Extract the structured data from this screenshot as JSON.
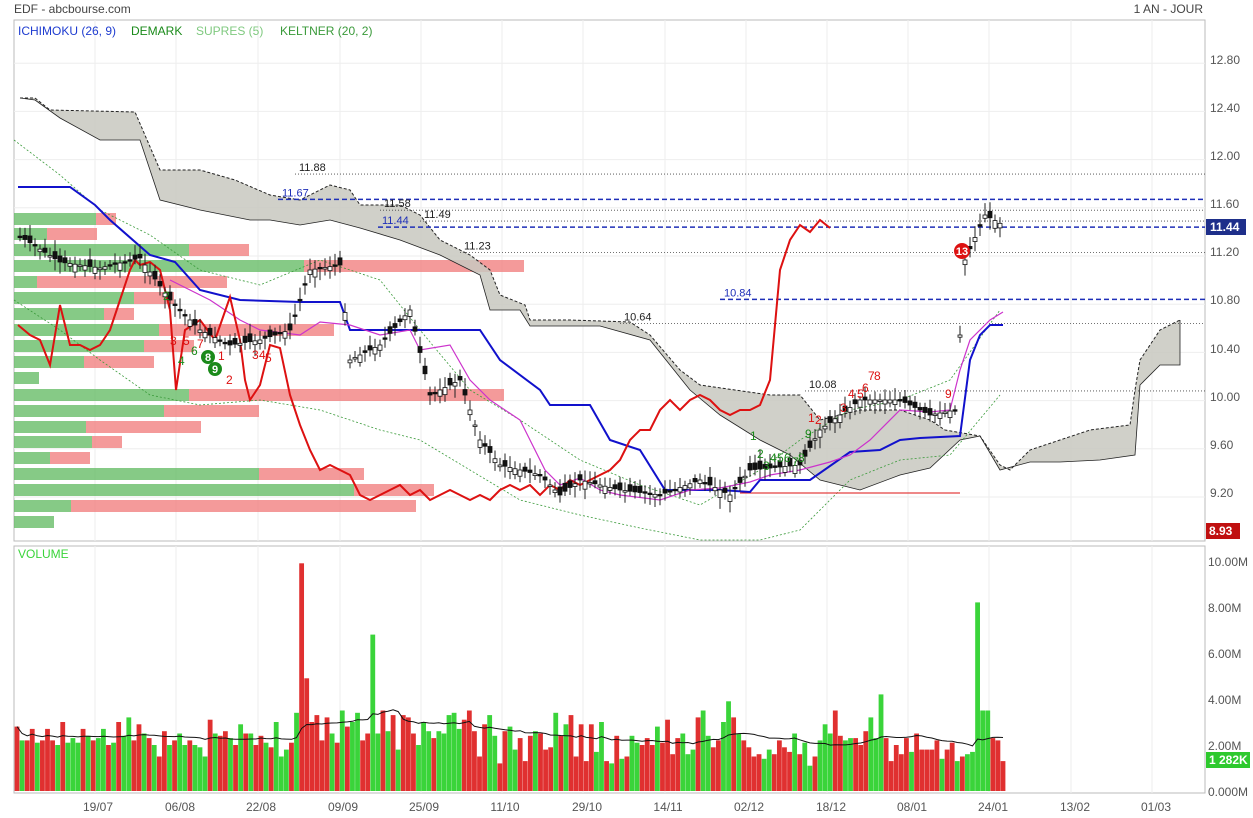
{
  "header": {
    "left": "EDF - abcbourse.com",
    "right": "1 AN - JOUR"
  },
  "indicators": [
    {
      "label": "ICHIMOKU (26, 9)",
      "color": "#1e3cd0"
    },
    {
      "label": "DEMARK",
      "color": "#1a8a1a"
    },
    {
      "label": "SUPRES (5)",
      "color": "#7fc97f"
    },
    {
      "label": "KELTNER (20, 2)",
      "color": "#3a9a3a"
    }
  ],
  "volume_label": "VOLUME",
  "colors": {
    "up": "#3ad43a",
    "down": "#e03030",
    "kijun": "#1111cc",
    "tenkan": "#cc33cc",
    "chikou": "#dd1111",
    "cloud": "#c8c8c0"
  },
  "chart_data": [
    {
      "type": "candlestick",
      "title": "",
      "xlabel": "",
      "ylabel": "",
      "ylim": [
        8.93,
        13.1
      ],
      "y_ticks": [
        "12.80",
        "12.40",
        "12.00",
        "11.60",
        "11.20",
        "10.80",
        "10.40",
        "10.00",
        "9.60",
        "9.20"
      ],
      "x_ticks": [
        "19/07",
        "06/08",
        "22/08",
        "09/09",
        "25/09",
        "11/10",
        "29/10",
        "14/11",
        "02/12",
        "18/12",
        "08/01",
        "24/01",
        "13/02",
        "01/03"
      ],
      "last_price": "11.44",
      "min_price": "8.93",
      "levels": [
        {
          "label": "11.88",
          "value": 11.88,
          "style": "dotted"
        },
        {
          "label": "11.67",
          "value": 11.67,
          "style": "dashed"
        },
        {
          "label": "11.58",
          "value": 11.58,
          "style": "dotted"
        },
        {
          "label": "11.49",
          "value": 11.49,
          "style": "dotted"
        },
        {
          "label": "11.44",
          "value": 11.44,
          "style": "dashed"
        },
        {
          "label": "11.23",
          "value": 11.23,
          "style": "dotted"
        },
        {
          "label": "10.84",
          "value": 10.84,
          "style": "dashed"
        },
        {
          "label": "10.64",
          "value": 10.64,
          "style": "dotted"
        },
        {
          "label": "10.08",
          "value": 10.08,
          "style": "dotted"
        }
      ],
      "demark_labels": [
        {
          "t": "1",
          "c": "g"
        },
        {
          "t": "2",
          "c": "g"
        },
        {
          "t": "3",
          "c": "g"
        },
        {
          "t": "4",
          "c": "g"
        },
        {
          "t": "5",
          "c": "g"
        },
        {
          "t": "6",
          "c": "g"
        },
        {
          "t": "7",
          "c": "g"
        },
        {
          "t": "8",
          "c": "g"
        },
        {
          "t": "9",
          "c": "g"
        },
        {
          "t": "1",
          "c": "r"
        },
        {
          "t": "2",
          "c": "r"
        },
        {
          "t": "3",
          "c": "r"
        },
        {
          "t": "4",
          "c": "r"
        },
        {
          "t": "5",
          "c": "r"
        },
        {
          "t": "6",
          "c": "r"
        },
        {
          "t": "7",
          "c": "r"
        },
        {
          "t": "8",
          "c": "r"
        },
        {
          "t": "9",
          "c": "r"
        },
        {
          "t": "13",
          "c": "r"
        }
      ]
    },
    {
      "type": "bar",
      "title": "VOLUME",
      "ylim": [
        0,
        10.5
      ],
      "y_ticks": [
        "10.00M",
        "8.00M",
        "6.00M",
        "4.00M",
        "2.00M",
        "0.000M"
      ],
      "last_value": "1 282K",
      "values": [
        2.8,
        2.2,
        2.2,
        2.7,
        2.1,
        2.2,
        2.7,
        2.2,
        2.0,
        3.0,
        2.1,
        2.3,
        2.1,
        2.7,
        2.4,
        2.2,
        2.3,
        2.7,
        2.0,
        2.1,
        3.0,
        2.4,
        3.2,
        2.2,
        2.9,
        2.5,
        2.3,
        2.0,
        1.5,
        2.6,
        2.0,
        2.2,
        2.5,
        2.0,
        2.2,
        2.0,
        1.9,
        1.5,
        3.1,
        2.5,
        2.4,
        2.6,
        2.3,
        2.0,
        2.9,
        2.5,
        2.5,
        2.0,
        2.4,
        2.1,
        1.9,
        3.0,
        1.5,
        1.8,
        2.1,
        3.4,
        9.9,
        4.9,
        3.0,
        3.3,
        2.2,
        3.2,
        2.5,
        2.1,
        3.5,
        2.8,
        3.0,
        3.4,
        2.2,
        2.5,
        6.8,
        2.5,
        3.5,
        2.6,
        3.3,
        1.8,
        3.3,
        3.2,
        2.5,
        2.0,
        3.0,
        2.6,
        2.3,
        2.6,
        2.5,
        3.3,
        3.4,
        2.7,
        3.1,
        3.5,
        2.6,
        1.5,
        2.9,
        3.3,
        2.4,
        1.2,
        2.6,
        2.8,
        1.8,
        2.3,
        1.3,
        2.4,
        2.6,
        2.5,
        1.8,
        1.9,
        3.4,
        2.4,
        2.9,
        3.3,
        1.5,
        2.9,
        1.3,
        2.9,
        1.7,
        3.0,
        1.3,
        1.2,
        2.4,
        1.4,
        1.5,
        2.4,
        2.1,
        2.0,
        2.3,
        2.0,
        2.8,
        2.1,
        3.1,
        1.6,
        2.3,
        2.5,
        1.6,
        1.8,
        3.2,
        3.5,
        2.4,
        1.9,
        2.2,
        3.0,
        3.9,
        3.2,
        2.5,
        2.2,
        1.9,
        1.5,
        1.6,
        1.4,
        1.8,
        1.6,
        2.2,
        1.9,
        1.7,
        2.5,
        1.6,
        2.1,
        1.1,
        1.5,
        2.2,
        2.9,
        2.5,
        3.5,
        2.4,
        2.2,
        2.3,
        2.3,
        2.0,
        2.6,
        3.2,
        2.3,
        4.2,
        2.3,
        1.3,
        2.0,
        1.6,
        2.3,
        1.7,
        2.5,
        1.8,
        1.8,
        1.8,
        2.2,
        1.4,
        1.8,
        2.1,
        1.3,
        1.5,
        1.6,
        1.7,
        8.2,
        3.5,
        3.5,
        2.3,
        2.2,
        1.3
      ]
    }
  ]
}
